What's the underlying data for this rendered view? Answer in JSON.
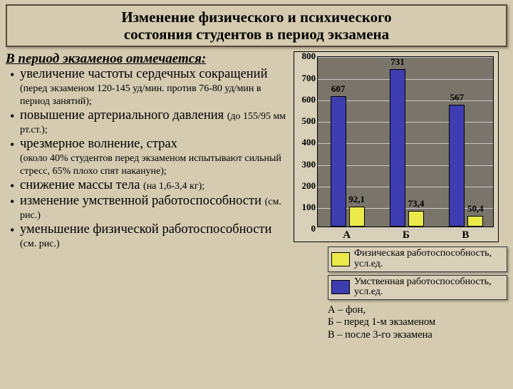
{
  "title": {
    "line1": "Изменение физического и психического",
    "line2": "состояния студентов в период экзамена"
  },
  "subhead": "В период экзаменов отмечается:",
  "bullets": [
    {
      "main": "увеличение частоты сердечных сокращений ",
      "sub": "(перед экзаменом 120-145 уд/мин. против 76-80 уд/мин в период занятий);"
    },
    {
      "main": "повышение артериального давления ",
      "sub": "(до 155/95 мм рт.ст.);"
    },
    {
      "main": "чрезмерное волнение, страх ",
      "sub": "(около 40% студентов перед экзаменом испытывают сильный стресс, 65% плохо спят накануне);"
    },
    {
      "main": "снижение массы тела ",
      "sub": "(на 1,6-3,4 кг);",
      "inline": true
    },
    {
      "main": "изменение умственной работоспособности ",
      "sub": "(см. рис.)",
      "inline": true
    },
    {
      "main": "уменьшение физической работоспособности ",
      "sub": "(см. рис.)",
      "inline": true
    }
  ],
  "chart": {
    "type": "bar",
    "ylim": [
      0,
      800
    ],
    "ytick_step": 100,
    "background_color": "#7a756a",
    "grid_color": "#c8c8c8",
    "categories": [
      "А",
      "Б",
      "В"
    ],
    "series": [
      {
        "name": "mental",
        "color": "#3d3db0",
        "values": [
          607,
          731,
          567
        ]
      },
      {
        "name": "physical",
        "color": "#eaea4a",
        "values": [
          92.1,
          73.4,
          50.4
        ]
      }
    ],
    "value_labels_blue": [
      "607",
      "731",
      "567"
    ],
    "value_labels_yellow": [
      "92,1",
      "73,4",
      "50,4"
    ],
    "axis_fontsize": 13,
    "label_fontsize": 13,
    "cat_fontsize": 15
  },
  "legend": [
    {
      "color": "#eaea4a",
      "text": "Физическая работоспособность, усл.ед."
    },
    {
      "color": "#3d3db0",
      "text": "Умственная работоспособность, усл.ед."
    }
  ],
  "key": {
    "a": "А – фон,",
    "b": "Б – перед 1-м экзаменом",
    "c": "В – после 3-го экзамена"
  }
}
